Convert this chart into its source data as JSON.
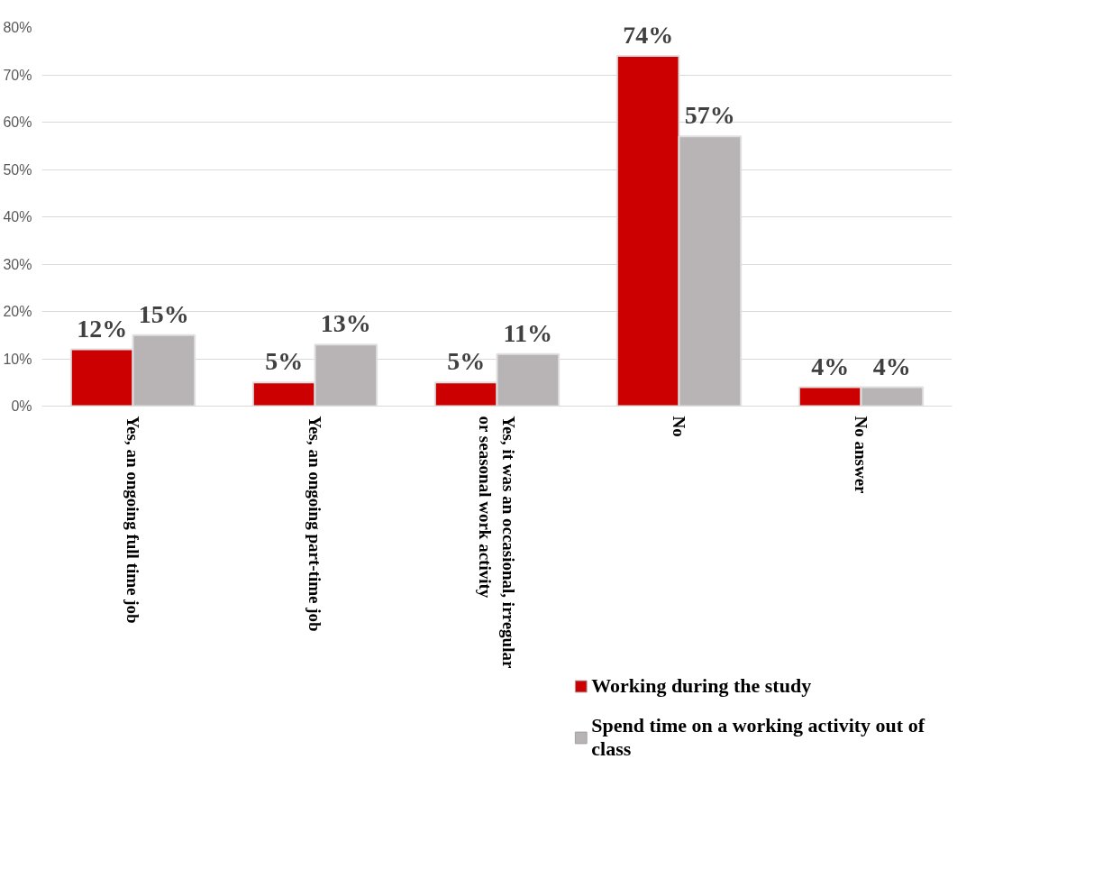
{
  "chart_data": {
    "type": "bar",
    "categories": [
      "Yes, an ongoing full time job",
      "Yes, an ongoing part-time job",
      "Yes, it was an occasional, irregular\nor seasonal work activity",
      "No",
      "No answer"
    ],
    "series": [
      {
        "name": "Working during the study",
        "color": "#cc0000",
        "values": [
          12,
          5,
          5,
          74,
          4
        ],
        "value_labels": [
          "12%",
          "5%",
          "5%",
          "74%",
          "4%"
        ]
      },
      {
        "name": "Spend time on a working activity out of\nclass",
        "color": "#b8b4b6",
        "values": [
          15,
          13,
          11,
          57,
          4
        ],
        "value_labels": [
          "15%",
          "13%",
          "11%",
          "57%",
          "4%"
        ]
      }
    ],
    "ylim": [
      0,
      80
    ],
    "yticks": [
      {
        "value": 0,
        "label": "0%"
      },
      {
        "value": 10,
        "label": "10%"
      },
      {
        "value": 20,
        "label": "20%"
      },
      {
        "value": 30,
        "label": "30%"
      },
      {
        "value": 40,
        "label": "40%"
      },
      {
        "value": 50,
        "label": "50%"
      },
      {
        "value": 60,
        "label": "60%"
      },
      {
        "value": 70,
        "label": "70%"
      },
      {
        "value": 80,
        "label": "80%"
      }
    ],
    "grid": "y",
    "legend": "bottom right"
  }
}
